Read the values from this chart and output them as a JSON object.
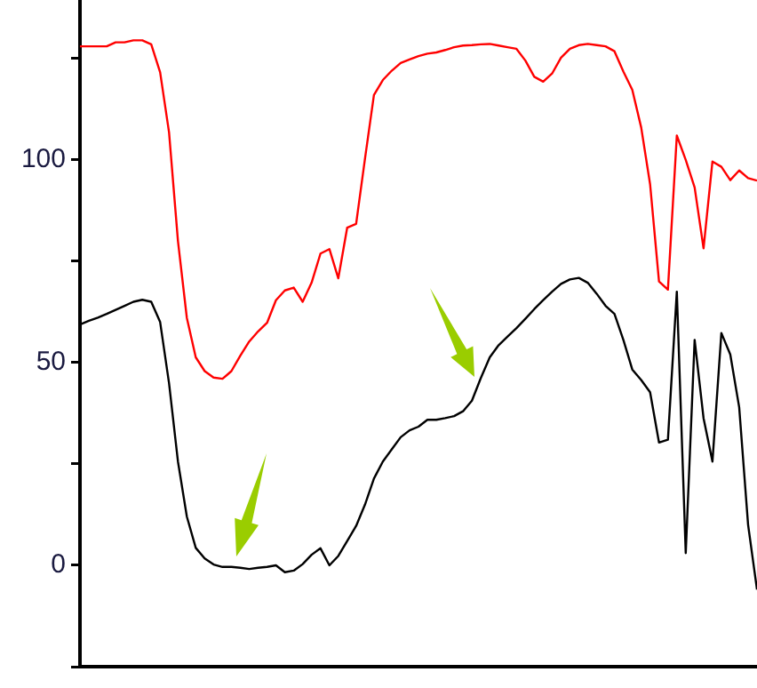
{
  "chart_data": {
    "type": "line",
    "ylim": [
      -25,
      139
    ],
    "categories": [
      null,
      null,
      null,
      null,
      null,
      null,
      null,
      null,
      null,
      null,
      null,
      null,
      null,
      null,
      null,
      null,
      null,
      null,
      null,
      null,
      null,
      null,
      null,
      null,
      null,
      null,
      null,
      null,
      null,
      null,
      null,
      null,
      null,
      null,
      null,
      null,
      null,
      null,
      null,
      null,
      null,
      null,
      null,
      null,
      null,
      null,
      null,
      null,
      null,
      null,
      null,
      null,
      null,
      null,
      null,
      null,
      null,
      null,
      null,
      null,
      null,
      null,
      null,
      null,
      null,
      null,
      null,
      null,
      null,
      null,
      null,
      null,
      null,
      null,
      null,
      null,
      null
    ],
    "yticks": [
      {
        "value": -25,
        "label": null
      },
      0,
      {
        "value": 25,
        "label": null
      },
      50,
      {
        "value": 75,
        "label": null
      },
      100,
      {
        "value": 125,
        "label": null
      }
    ],
    "tick_labels": "y",
    "grid": false,
    "legend": false,
    "marker": "none",
    "line_style": "solid",
    "series": [
      {
        "color": "#ff0000",
        "values": [
          128,
          128,
          128,
          128,
          129,
          129,
          129.5,
          129.5,
          128.5,
          121.6,
          106.8,
          80,
          61,
          51.3,
          47.9,
          46.3,
          46,
          47.9,
          51.7,
          55.2,
          57.7,
          59.8,
          65.4,
          67.8,
          68.5,
          65,
          69.7,
          76.9,
          78,
          70.8,
          83.3,
          84.2,
          100.4,
          116,
          119.7,
          122,
          123.9,
          124.8,
          125.6,
          126.2,
          126.5,
          127.1,
          127.8,
          128.2,
          128.3,
          128.5,
          128.6,
          128.2,
          127.8,
          127.4,
          124.5,
          120.5,
          119.3,
          121.3,
          125.2,
          127.4,
          128.3,
          128.6,
          128.3,
          128,
          126.8,
          121.8,
          117.3,
          108,
          94,
          70,
          68,
          106,
          100,
          93.2,
          78.2,
          99.6,
          98.3,
          95,
          97.4,
          95.5,
          94.9
        ]
      },
      {
        "color": "#000000",
        "values": [
          59.4,
          60.3,
          61.1,
          62,
          63,
          64,
          65,
          65.5,
          65,
          60,
          44.9,
          25.6,
          12,
          4.3,
          1.7,
          0.2,
          -0.4,
          -0.4,
          -0.6,
          -0.9,
          -0.6,
          -0.4,
          0,
          -1.7,
          -1.3,
          0.3,
          2.6,
          4.2,
          0,
          2.3,
          6,
          9.7,
          15,
          21.4,
          25.6,
          28.6,
          31.6,
          33.3,
          34.2,
          35.9,
          35.9,
          36.3,
          36.8,
          38,
          40.6,
          46.2,
          51.3,
          54.3,
          56.4,
          58.5,
          60.8,
          63.2,
          65.4,
          67.5,
          69.4,
          70.5,
          70.9,
          69.7,
          67,
          64,
          62,
          55.6,
          48.3,
          45.7,
          42.7,
          30.3,
          31,
          67.5,
          3,
          55.6,
          36.3,
          25.6,
          57.3,
          52,
          39,
          10,
          -6
        ]
      }
    ]
  }
}
